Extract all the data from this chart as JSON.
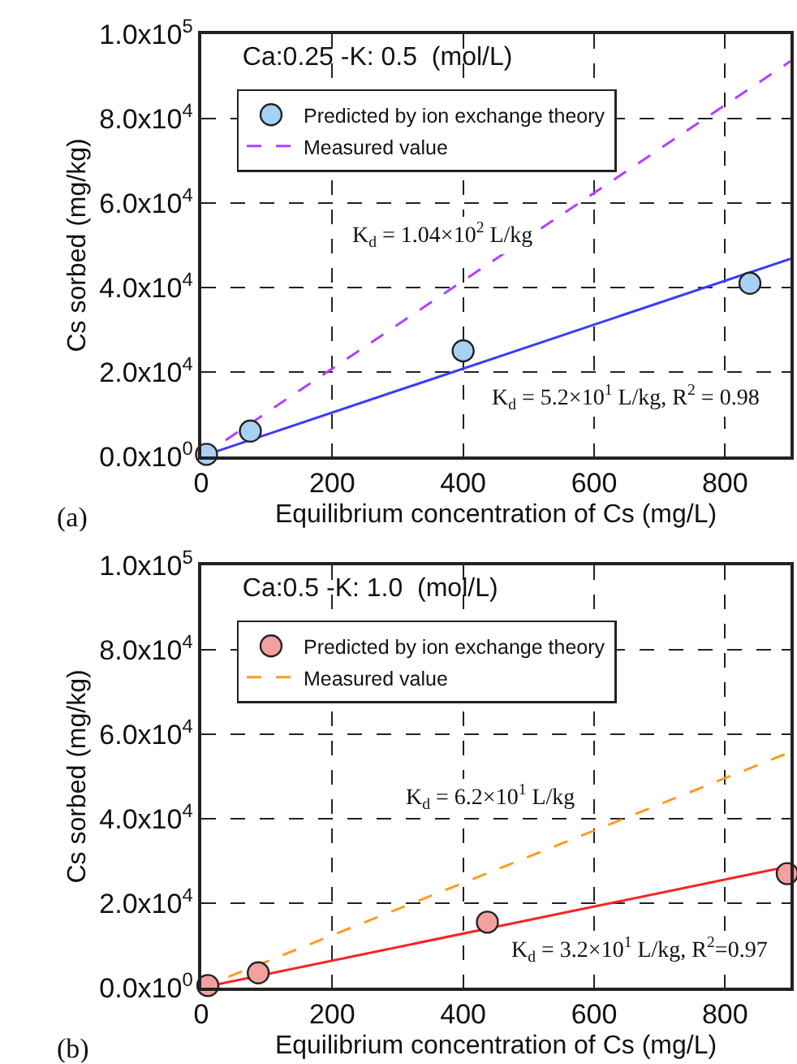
{
  "chart_data": [
    {
      "type": "scatter",
      "title": "Ca:0.25 -K: 0.5  (mol/L)",
      "xlabel": "Equilibrium concentration of Cs (mg/L)",
      "ylabel": "Cs sorbed (mg/kg)",
      "series": [
        {
          "name": "Predicted by ion exchange theory",
          "marker": "circle",
          "color": "#a8d0f5",
          "x": [
            8,
            75,
            400,
            838
          ],
          "values": [
            500,
            6000,
            25000,
            41000
          ]
        },
        {
          "type": "line",
          "color": "#3a3aff",
          "line_style": "solid",
          "x": [
            0,
            900
          ],
          "values": [
            0,
            46800
          ]
        },
        {
          "name": "Measured value",
          "type": "line",
          "color": "#b040ff",
          "line_style": "dashed",
          "x": [
            0,
            900
          ],
          "values": [
            0,
            93600
          ]
        }
      ],
      "annotations": [
        "K$_{d}$ = 1.04×10$^{2}$ L/kg",
        "K$_{d}$ = 5.2×10$^{1}$ L/kg, R$^{2}$ = 0.98",
        "(a)"
      ],
      "xlim": [
        0,
        900
      ],
      "xticks": [
        0,
        200,
        400,
        600,
        800
      ],
      "ylim": [
        0,
        100000
      ],
      "yticks": [
        {
          "value": 0,
          "label": "0.0x10$^{0}$"
        },
        {
          "value": 20000,
          "label": "2.0x10$^{4}$"
        },
        {
          "value": 40000,
          "label": "4.0x10$^{4}$"
        },
        {
          "value": 60000,
          "label": "6.0x10$^{4}$"
        },
        {
          "value": 80000,
          "label": "8.0x10$^{4}$"
        },
        {
          "value": 100000,
          "label": "1.0x10$^{5}$"
        }
      ],
      "grid": true,
      "legend": "top left"
    },
    {
      "type": "scatter",
      "title": "Ca:0.5 -K: 1.0  (mol/L)",
      "xlabel": "Equilibrium concentration of Cs (mg/L)",
      "ylabel": "Cs sorbed (mg/kg)",
      "series": [
        {
          "name": "Predicted by ion exchange theory",
          "marker": "circle",
          "color": "#f4a0a0",
          "x": [
            10,
            87,
            437,
            895
          ],
          "values": [
            500,
            3500,
            15500,
            27000
          ]
        },
        {
          "type": "line",
          "color": "#ff2020",
          "line_style": "solid",
          "x": [
            0,
            900
          ],
          "values": [
            0,
            28800
          ]
        },
        {
          "name": "Measured value",
          "type": "line",
          "color": "#ff9a20",
          "line_style": "dashed",
          "x": [
            0,
            900
          ],
          "values": [
            0,
            55800
          ]
        }
      ],
      "annotations": [
        "K$_{d}$ = 6.2×10$^{1}$ L/kg",
        "K$_{d}$ = 3.2×10$^{1}$ L/kg, R$^{2}$=0.97",
        "(b)"
      ],
      "xlim": [
        0,
        900
      ],
      "xticks": [
        0,
        200,
        400,
        600,
        800
      ],
      "ylim": [
        0,
        100000
      ],
      "yticks": [
        {
          "value": 0,
          "label": "0.0x10$^{0}$"
        },
        {
          "value": 20000,
          "label": "2.0x10$^{4}$"
        },
        {
          "value": 40000,
          "label": "4.0x10$^{4}$"
        },
        {
          "value": 60000,
          "label": "6.0x10$^{4}$"
        },
        {
          "value": 80000,
          "label": "8.0x10$^{4}$"
        },
        {
          "value": 100000,
          "label": "1.0x10$^{5}$"
        }
      ],
      "grid": true,
      "legend": "top left"
    }
  ]
}
